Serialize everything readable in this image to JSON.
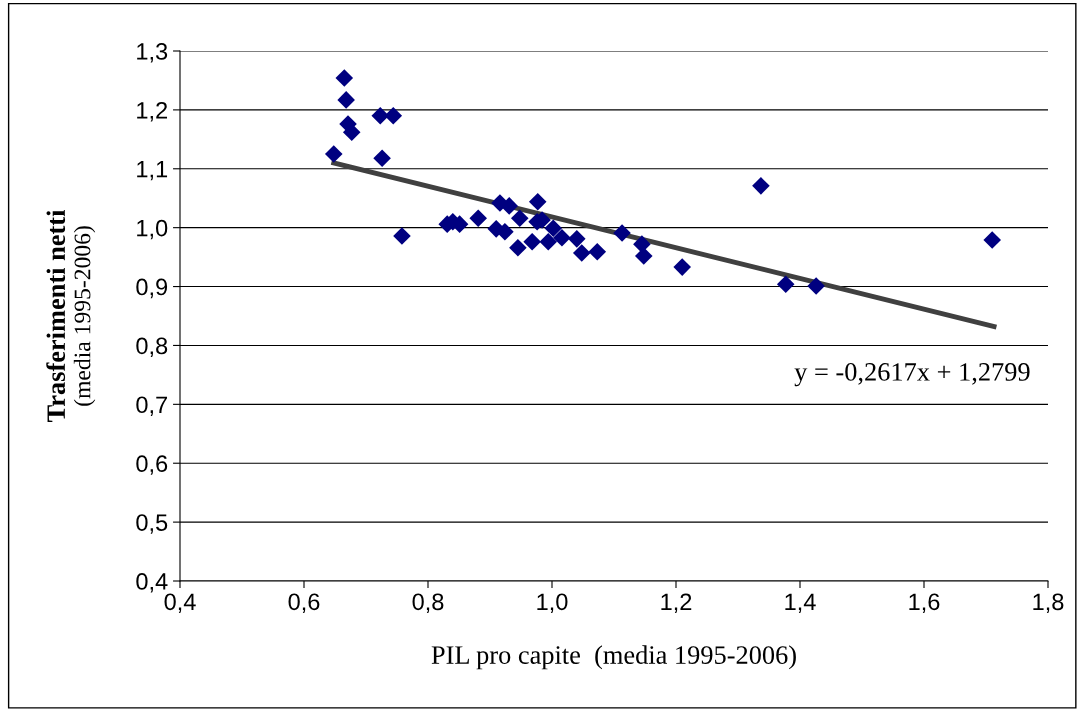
{
  "chart_data": {
    "type": "scatter",
    "xlabel": "PIL pro capite  (media 1995-2006)",
    "ylabel": "Trasferimenti netti\n(media 1995-2006)",
    "xlim": [
      0.4,
      1.8
    ],
    "ylim": [
      0.4,
      1.3
    ],
    "xticks": [
      {
        "value": 0.4,
        "label": "0,4"
      },
      {
        "value": 0.6,
        "label": "0,6"
      },
      {
        "value": 0.8,
        "label": "0,8"
      },
      {
        "value": 1.0,
        "label": "1,0"
      },
      {
        "value": 1.2,
        "label": "1,2"
      },
      {
        "value": 1.4,
        "label": "1,4"
      },
      {
        "value": 1.6,
        "label": "1,6"
      },
      {
        "value": 1.8,
        "label": "1,8"
      }
    ],
    "yticks": [
      {
        "value": 0.4,
        "label": "0,4"
      },
      {
        "value": 0.5,
        "label": "0,5"
      },
      {
        "value": 0.6,
        "label": "0,6"
      },
      {
        "value": 0.7,
        "label": "0,7"
      },
      {
        "value": 0.8,
        "label": "0,8"
      },
      {
        "value": 0.9,
        "label": "0,9"
      },
      {
        "value": 1.0,
        "label": "1,0"
      },
      {
        "value": 1.1,
        "label": "1,1"
      },
      {
        "value": 1.2,
        "label": "1,2"
      },
      {
        "value": 1.3,
        "label": "1,3"
      }
    ],
    "grid": "y",
    "series": [
      {
        "marker": "diamond",
        "color": "#000080",
        "x": [
          0.665,
          0.668,
          0.671,
          0.677,
          0.648,
          0.723,
          0.744,
          0.726,
          0.758,
          0.831,
          0.84,
          0.851,
          0.881,
          0.91,
          0.916,
          0.924,
          0.931,
          0.945,
          0.948,
          0.968,
          0.976,
          0.977,
          0.984,
          0.994,
          1.002,
          1.016,
          1.04,
          1.048,
          1.073,
          1.113,
          1.145,
          1.148,
          1.21,
          1.337,
          1.377,
          1.426,
          1.71
        ],
        "values": [
          1.254,
          1.217,
          1.176,
          1.162,
          1.125,
          1.19,
          1.19,
          1.118,
          0.986,
          1.006,
          1.01,
          1.006,
          1.016,
          0.998,
          1.042,
          0.993,
          1.037,
          0.966,
          1.016,
          0.976,
          1.01,
          1.044,
          1.013,
          0.976,
          0.999,
          0.983,
          0.981,
          0.957,
          0.959,
          0.991,
          0.972,
          0.952,
          0.933,
          1.071,
          0.904,
          0.901,
          0.979
        ]
      },
      {
        "type": "line",
        "color": "#404040",
        "x": [
          0.648,
          1.713
        ],
        "values": [
          1.11,
          0.832
        ]
      }
    ],
    "annotations": [
      "y = -0,2617x + 1,2799"
    ]
  }
}
